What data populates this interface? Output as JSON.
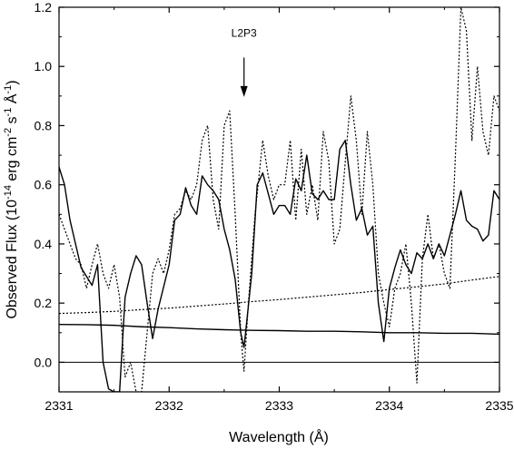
{
  "chart_data": {
    "type": "line",
    "xlabel": "Wavelength (Å)",
    "ylabel": {
      "prefix": "Observed Flux (10",
      "exp1": "-14",
      "mid1": " erg cm",
      "exp2": "-2",
      "mid2": " s",
      "exp3": "-1",
      "mid3": " Å",
      "exp4": "-1",
      "suffix": ")"
    },
    "xlim": [
      2331,
      2335
    ],
    "ylim": [
      -0.1,
      1.2
    ],
    "x_ticks": [
      2331,
      2332,
      2333,
      2334,
      2335
    ],
    "x_tick_labels": [
      "2331",
      "2332",
      "2333",
      "2334",
      "2335"
    ],
    "y_ticks": [
      0.0,
      0.2,
      0.4,
      0.6,
      0.8,
      1.0,
      1.2
    ],
    "y_tick_labels": [
      "0.0",
      "0.2",
      "0.4",
      "0.6",
      "0.8",
      "1.0",
      "1.2"
    ],
    "reference_line": {
      "y": 0.0
    },
    "annotation": {
      "text": "L2P3",
      "x": 2332.68,
      "y_text": 1.1,
      "y_arrow_start": 1.03,
      "y_arrow_end": 0.9
    },
    "series": [
      {
        "style": "solid",
        "points": [
          [
            2331.0,
            0.66
          ],
          [
            2331.05,
            0.6
          ],
          [
            2331.1,
            0.48
          ],
          [
            2331.2,
            0.32
          ],
          [
            2331.3,
            0.26
          ],
          [
            2331.35,
            0.33
          ],
          [
            2331.4,
            0.0
          ],
          [
            2331.45,
            -0.09
          ],
          [
            2331.5,
            -0.1
          ],
          [
            2331.55,
            -0.1
          ],
          [
            2331.6,
            0.22
          ],
          [
            2331.65,
            0.3
          ],
          [
            2331.7,
            0.36
          ],
          [
            2331.75,
            0.33
          ],
          [
            2331.8,
            0.2
          ],
          [
            2331.85,
            0.08
          ],
          [
            2331.9,
            0.18
          ],
          [
            2332.0,
            0.33
          ],
          [
            2332.05,
            0.48
          ],
          [
            2332.1,
            0.5
          ],
          [
            2332.15,
            0.59
          ],
          [
            2332.2,
            0.53
          ],
          [
            2332.25,
            0.5
          ],
          [
            2332.3,
            0.63
          ],
          [
            2332.35,
            0.6
          ],
          [
            2332.4,
            0.58
          ],
          [
            2332.45,
            0.55
          ],
          [
            2332.5,
            0.45
          ],
          [
            2332.55,
            0.38
          ],
          [
            2332.6,
            0.28
          ],
          [
            2332.65,
            0.1
          ],
          [
            2332.68,
            0.05
          ],
          [
            2332.7,
            0.12
          ],
          [
            2332.75,
            0.3
          ],
          [
            2332.8,
            0.6
          ],
          [
            2332.85,
            0.64
          ],
          [
            2332.9,
            0.57
          ],
          [
            2332.95,
            0.5
          ],
          [
            2333.0,
            0.53
          ],
          [
            2333.05,
            0.53
          ],
          [
            2333.1,
            0.5
          ],
          [
            2333.15,
            0.62
          ],
          [
            2333.2,
            0.58
          ],
          [
            2333.25,
            0.7
          ],
          [
            2333.3,
            0.57
          ],
          [
            2333.35,
            0.55
          ],
          [
            2333.4,
            0.58
          ],
          [
            2333.45,
            0.55
          ],
          [
            2333.5,
            0.55
          ],
          [
            2333.55,
            0.72
          ],
          [
            2333.6,
            0.75
          ],
          [
            2333.65,
            0.6
          ],
          [
            2333.7,
            0.48
          ],
          [
            2333.75,
            0.52
          ],
          [
            2333.8,
            0.43
          ],
          [
            2333.85,
            0.46
          ],
          [
            2333.9,
            0.2
          ],
          [
            2333.95,
            0.07
          ],
          [
            2334.0,
            0.25
          ],
          [
            2334.05,
            0.32
          ],
          [
            2334.1,
            0.38
          ],
          [
            2334.15,
            0.33
          ],
          [
            2334.2,
            0.3
          ],
          [
            2334.25,
            0.37
          ],
          [
            2334.3,
            0.35
          ],
          [
            2334.35,
            0.4
          ],
          [
            2334.4,
            0.35
          ],
          [
            2334.45,
            0.4
          ],
          [
            2334.5,
            0.36
          ],
          [
            2334.55,
            0.43
          ],
          [
            2334.6,
            0.5
          ],
          [
            2334.65,
            0.58
          ],
          [
            2334.7,
            0.48
          ],
          [
            2334.75,
            0.46
          ],
          [
            2334.8,
            0.45
          ],
          [
            2334.85,
            0.41
          ],
          [
            2334.9,
            0.43
          ],
          [
            2334.95,
            0.58
          ],
          [
            2335.0,
            0.55
          ]
        ]
      },
      {
        "style": "dotted",
        "points": [
          [
            2331.0,
            0.5
          ],
          [
            2331.05,
            0.45
          ],
          [
            2331.1,
            0.4
          ],
          [
            2331.15,
            0.35
          ],
          [
            2331.2,
            0.33
          ],
          [
            2331.25,
            0.25
          ],
          [
            2331.3,
            0.33
          ],
          [
            2331.35,
            0.4
          ],
          [
            2331.4,
            0.3
          ],
          [
            2331.45,
            0.25
          ],
          [
            2331.5,
            0.33
          ],
          [
            2331.55,
            0.22
          ],
          [
            2331.6,
            -0.05
          ],
          [
            2331.65,
            0.0
          ],
          [
            2331.7,
            -0.1
          ],
          [
            2331.75,
            -0.1
          ],
          [
            2331.8,
            0.1
          ],
          [
            2331.85,
            0.3
          ],
          [
            2331.9,
            0.35
          ],
          [
            2331.95,
            0.3
          ],
          [
            2332.0,
            0.38
          ],
          [
            2332.05,
            0.5
          ],
          [
            2332.1,
            0.52
          ],
          [
            2332.15,
            0.58
          ],
          [
            2332.2,
            0.55
          ],
          [
            2332.25,
            0.6
          ],
          [
            2332.3,
            0.75
          ],
          [
            2332.35,
            0.8
          ],
          [
            2332.4,
            0.55
          ],
          [
            2332.45,
            0.45
          ],
          [
            2332.5,
            0.8
          ],
          [
            2332.55,
            0.85
          ],
          [
            2332.6,
            0.5
          ],
          [
            2332.65,
            0.1
          ],
          [
            2332.68,
            -0.03
          ],
          [
            2332.72,
            0.2
          ],
          [
            2332.78,
            0.5
          ],
          [
            2332.85,
            0.75
          ],
          [
            2332.9,
            0.63
          ],
          [
            2332.95,
            0.55
          ],
          [
            2333.0,
            0.6
          ],
          [
            2333.05,
            0.6
          ],
          [
            2333.1,
            0.75
          ],
          [
            2333.15,
            0.48
          ],
          [
            2333.2,
            0.72
          ],
          [
            2333.25,
            0.5
          ],
          [
            2333.3,
            0.6
          ],
          [
            2333.35,
            0.48
          ],
          [
            2333.4,
            0.78
          ],
          [
            2333.45,
            0.68
          ],
          [
            2333.5,
            0.4
          ],
          [
            2333.55,
            0.45
          ],
          [
            2333.6,
            0.68
          ],
          [
            2333.65,
            0.9
          ],
          [
            2333.7,
            0.75
          ],
          [
            2333.75,
            0.5
          ],
          [
            2333.8,
            0.78
          ],
          [
            2333.85,
            0.6
          ],
          [
            2333.9,
            0.3
          ],
          [
            2333.95,
            0.2
          ],
          [
            2334.0,
            0.12
          ],
          [
            2334.05,
            0.25
          ],
          [
            2334.1,
            0.3
          ],
          [
            2334.15,
            0.4
          ],
          [
            2334.2,
            0.2
          ],
          [
            2334.25,
            -0.07
          ],
          [
            2334.3,
            0.35
          ],
          [
            2334.35,
            0.5
          ],
          [
            2334.4,
            0.35
          ],
          [
            2334.45,
            0.4
          ],
          [
            2334.5,
            0.3
          ],
          [
            2334.55,
            0.25
          ],
          [
            2334.6,
            0.7
          ],
          [
            2334.65,
            1.2
          ],
          [
            2334.7,
            1.12
          ],
          [
            2334.75,
            0.75
          ],
          [
            2334.8,
            1.0
          ],
          [
            2334.85,
            0.78
          ],
          [
            2334.9,
            0.7
          ],
          [
            2334.95,
            0.9
          ],
          [
            2335.0,
            0.85
          ]
        ]
      },
      {
        "style": "solid",
        "points": [
          [
            2331.0,
            0.128
          ],
          [
            2331.25,
            0.127
          ],
          [
            2331.5,
            0.125
          ],
          [
            2331.75,
            0.12
          ],
          [
            2332.0,
            0.117
          ],
          [
            2332.25,
            0.113
          ],
          [
            2332.5,
            0.11
          ],
          [
            2332.75,
            0.108
          ],
          [
            2333.0,
            0.107
          ],
          [
            2333.25,
            0.105
          ],
          [
            2333.5,
            0.105
          ],
          [
            2333.75,
            0.103
          ],
          [
            2334.0,
            0.1
          ],
          [
            2334.25,
            0.1
          ],
          [
            2334.5,
            0.098
          ],
          [
            2334.75,
            0.098
          ],
          [
            2335.0,
            0.095
          ]
        ]
      },
      {
        "style": "dotted",
        "points": [
          [
            2331.0,
            0.165
          ],
          [
            2331.25,
            0.168
          ],
          [
            2331.5,
            0.172
          ],
          [
            2331.75,
            0.178
          ],
          [
            2332.0,
            0.183
          ],
          [
            2332.25,
            0.19
          ],
          [
            2332.5,
            0.197
          ],
          [
            2332.75,
            0.205
          ],
          [
            2333.0,
            0.212
          ],
          [
            2333.25,
            0.22
          ],
          [
            2333.5,
            0.228
          ],
          [
            2333.75,
            0.236
          ],
          [
            2334.0,
            0.246
          ],
          [
            2334.25,
            0.255
          ],
          [
            2334.5,
            0.265
          ],
          [
            2334.75,
            0.278
          ],
          [
            2335.0,
            0.29
          ]
        ]
      }
    ]
  }
}
